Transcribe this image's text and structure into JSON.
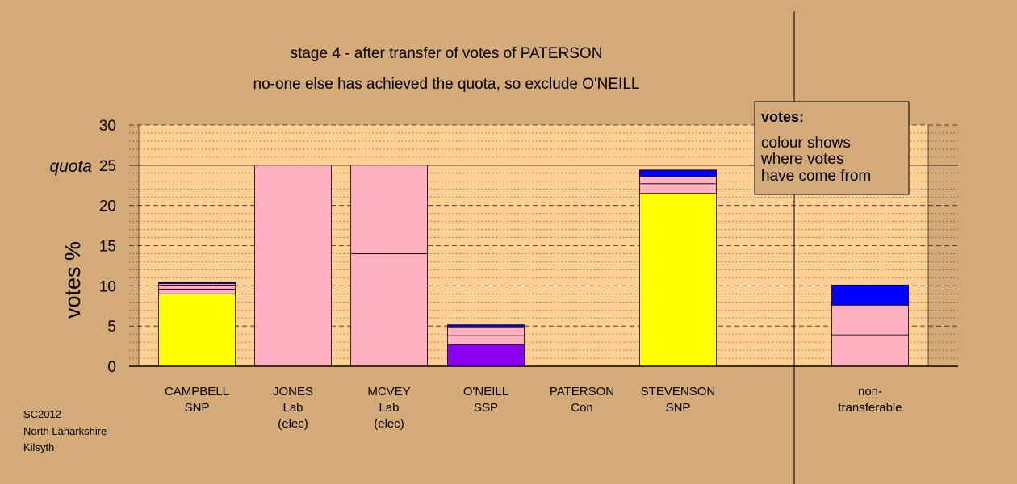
{
  "chart_data": {
    "type": "bar",
    "stacked": true,
    "title": "stage 4 - after transfer of votes of PATERSON",
    "subtitle": "no-one else has achieved the quota, so exclude O'NEILL",
    "ylabel": "votes %",
    "ylim": [
      0,
      30
    ],
    "yticks": [
      0,
      5,
      10,
      15,
      20,
      25,
      30
    ],
    "quota": {
      "label": "quota",
      "value": 25
    },
    "grid": true,
    "categories": [
      {
        "lines": [
          "CAMPBELL",
          "SNP"
        ]
      },
      {
        "lines": [
          "JONES",
          "Lab",
          "(elec)"
        ]
      },
      {
        "lines": [
          "MCVEY",
          "Lab",
          "(elec)"
        ]
      },
      {
        "lines": [
          "O'NEILL",
          "SSP"
        ]
      },
      {
        "lines": [
          "PATERSON",
          "Con"
        ]
      },
      {
        "lines": [
          "STEVENSON",
          "SNP"
        ]
      }
    ],
    "extra_category": {
      "lines": [
        "non-",
        "transferable"
      ]
    },
    "segments": [
      [
        {
          "value": 9.0,
          "color": "#ffff00"
        },
        {
          "value": 0.6,
          "color": "#ffb0c0"
        },
        {
          "value": 0.5,
          "color": "#ffb0c0"
        },
        {
          "value": 0.2,
          "color": "#ffb0c0"
        },
        {
          "value": 0.15,
          "color": "#0000ff"
        }
      ],
      [
        {
          "value": 25.0,
          "color": "#ffb0c0"
        }
      ],
      [
        {
          "value": 14.0,
          "color": "#ffb0c0"
        },
        {
          "value": 11.0,
          "color": "#ffb0c0"
        }
      ],
      [
        {
          "value": 2.7,
          "color": "#8a00f0"
        },
        {
          "value": 1.1,
          "color": "#ffb0c0"
        },
        {
          "value": 1.1,
          "color": "#ffb0c0"
        },
        {
          "value": 0.25,
          "color": "#0000ff"
        }
      ],
      [],
      [
        {
          "value": 21.5,
          "color": "#ffff00"
        },
        {
          "value": 1.2,
          "color": "#ffb0c0"
        },
        {
          "value": 0.9,
          "color": "#ffb0c0"
        },
        {
          "value": 0.8,
          "color": "#0000ff"
        }
      ]
    ],
    "extra_segments": [
      {
        "value": 3.9,
        "color": "#ffb0c0"
      },
      {
        "value": 3.7,
        "color": "#ffb0c0"
      },
      {
        "value": 2.5,
        "color": "#0000ff"
      }
    ]
  },
  "legend": {
    "title": "votes:",
    "lines": [
      "colour shows",
      "where votes",
      "have come from"
    ]
  },
  "footer": {
    "lines": [
      "SC2012",
      "North Lanarkshire",
      "Kilsyth"
    ]
  },
  "colors": {
    "background": "#d4aa78",
    "plot_area": "#ffcf94",
    "legend_box": "#d4aa78"
  }
}
